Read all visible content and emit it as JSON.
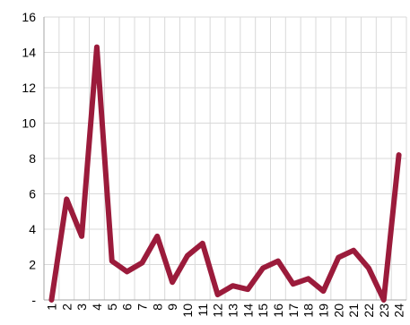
{
  "chart_data": {
    "type": "line",
    "categories": [
      "1",
      "2",
      "3",
      "4",
      "5",
      "6",
      "7",
      "8",
      "9",
      "10",
      "11",
      "12",
      "13",
      "14",
      "15",
      "16",
      "17",
      "18",
      "19",
      "20",
      "21",
      "22",
      "23",
      "24"
    ],
    "series": [
      {
        "values": [
          0,
          5.7,
          3.6,
          14.3,
          2.2,
          1.6,
          2.1,
          3.6,
          1.0,
          2.5,
          3.2,
          0.3,
          0.8,
          0.6,
          1.8,
          2.2,
          0.9,
          1.2,
          0.5,
          2.4,
          2.8,
          1.8,
          0,
          8.2
        ],
        "color": "#9B1B3B"
      }
    ],
    "ylim": [
      0,
      16
    ],
    "yticks": [
      0,
      2,
      4,
      6,
      8,
      10,
      12,
      14,
      16
    ],
    "ytick_labels": [
      "-",
      "2",
      "4",
      "6",
      "8",
      "10",
      "12",
      "14",
      "16"
    ],
    "grid": true,
    "grid_color": "#d9d9d9",
    "axis_color": "#a6a6a6"
  }
}
